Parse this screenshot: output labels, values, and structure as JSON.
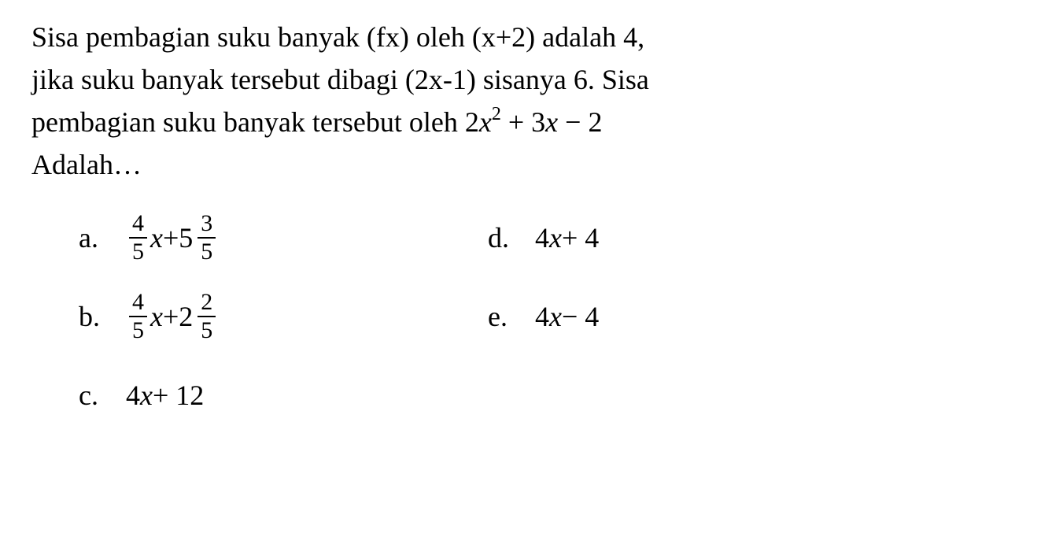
{
  "question": {
    "line1_pre": "Sisa pembagian suku banyak (fx) oleh (x+2) adalah 4,",
    "line2": "jika suku banyak tersebut dibagi (2x-1) sisanya 6. Sisa",
    "line3_pre": "pembagian suku banyak tersebut oleh ",
    "expr_coef1": "2",
    "expr_var1": "x",
    "expr_exp": "2",
    "expr_mid": " + 3",
    "expr_var2": "x",
    "expr_end": " − 2",
    "line4": "Adalah…"
  },
  "options": {
    "a": {
      "label": "a.",
      "frac1_num": "4",
      "frac1_den": "5",
      "var": "x",
      "op": " + ",
      "whole": "5",
      "frac2_num": "3",
      "frac2_den": "5"
    },
    "b": {
      "label": "b.",
      "frac1_num": "4",
      "frac1_den": "5",
      "var": "x",
      "op": " + ",
      "whole": "2",
      "frac2_num": "2",
      "frac2_den": "5"
    },
    "c": {
      "label": "c.",
      "text_pre": "4",
      "var": "x",
      "text_post": " + 12"
    },
    "d": {
      "label": "d.",
      "text_pre": "4",
      "var": "x",
      "text_post": " + 4"
    },
    "e": {
      "label": "e.",
      "text_pre": "4",
      "var": "x",
      "text_post": " − 4"
    }
  },
  "style": {
    "background_color": "#ffffff",
    "text_color": "#000000",
    "font_family": "Times New Roman",
    "question_fontsize": 36,
    "option_fontsize": 36,
    "fraction_fontsize": 30
  }
}
